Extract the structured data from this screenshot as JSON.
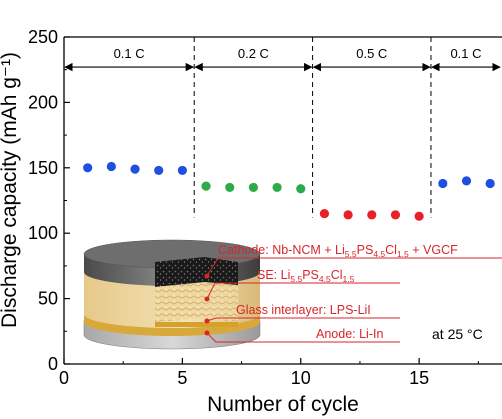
{
  "chart_data": {
    "type": "scatter",
    "xlabel": "Number of cycle",
    "ylabel": "Discharge capacity (mAh g⁻¹)",
    "xlim": [
      0,
      18.5
    ],
    "ylim": [
      0,
      250
    ],
    "x_ticks": [
      "0",
      "5",
      "10",
      "15"
    ],
    "y_ticks": [
      "0",
      "50",
      "100",
      "150",
      "200",
      "250"
    ],
    "x_tick_values": [
      0,
      5,
      10,
      15
    ],
    "y_tick_values": [
      0,
      50,
      100,
      150,
      200,
      250
    ],
    "grid": false,
    "segments": [
      {
        "label": "0.1 C",
        "x_start": 0,
        "x_end": 5.5,
        "color": "#1f4fe0",
        "points": [
          [
            1,
            150
          ],
          [
            2,
            151
          ],
          [
            3,
            149
          ],
          [
            4,
            148
          ],
          [
            5,
            148
          ]
        ]
      },
      {
        "label": "0.2 C",
        "x_start": 5.5,
        "x_end": 10.5,
        "color": "#2eaa4a",
        "points": [
          [
            6,
            136
          ],
          [
            7,
            135
          ],
          [
            8,
            135
          ],
          [
            9,
            135
          ],
          [
            10,
            134
          ]
        ]
      },
      {
        "label": "0.5 C",
        "x_start": 10.5,
        "x_end": 15.5,
        "color": "#e8202a",
        "points": [
          [
            11,
            115
          ],
          [
            12,
            114
          ],
          [
            13,
            114
          ],
          [
            14,
            114
          ],
          [
            15,
            113
          ]
        ]
      },
      {
        "label": "0.1 C",
        "x_start": 15.5,
        "x_end": 18.5,
        "color": "#1f4fe0",
        "points": [
          [
            16,
            138
          ],
          [
            17,
            140
          ],
          [
            18,
            138
          ]
        ]
      }
    ],
    "rate_arrow_y": 227,
    "annotations": {
      "cathode": {
        "prefix": "Cathode: Nb-NCM + Li",
        "sub1": "5.5",
        "mid1": "PS",
        "sub2": "4.5",
        "mid2": "Cl",
        "sub3": "1.5",
        "suffix": " + VGCF"
      },
      "se": {
        "prefix": "SE: Li",
        "sub1": "5.5",
        "mid1": "PS",
        "sub2": "4.5",
        "mid2": "Cl",
        "sub3": "1.5"
      },
      "interlayer": "Glass interlayer: LPS-LiI",
      "anode": "Anode: Li-In",
      "temperature": "at 25 °C"
    },
    "colors": {
      "callout": "#d6262b",
      "axis": "#000000"
    }
  }
}
